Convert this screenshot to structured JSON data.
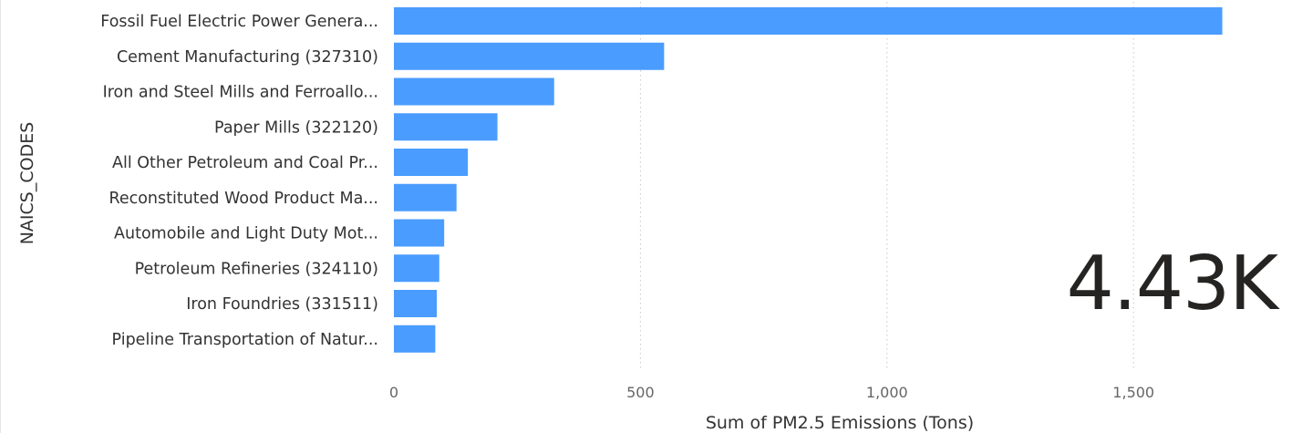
{
  "chart_data": {
    "type": "bar",
    "orientation": "horizontal",
    "categories": [
      "Fossil Fuel Electric Power Genera...",
      "Cement Manufacturing (327310)",
      "Iron and Steel Mills and Ferroallo...",
      "Paper Mills (322120)",
      "All Other Petroleum and Coal Pr...",
      "Reconstituted Wood Product Ma...",
      "Automobile and Light Duty Mot...",
      "Petroleum Refineries (324110)",
      "Iron Foundries (331511)",
      "Pipeline Transportation of Natur..."
    ],
    "values": [
      1680,
      548,
      325,
      210,
      150,
      127,
      102,
      92,
      87,
      84
    ],
    "xlabel": "Sum of PM2.5 Emissions (Tons)",
    "ylabel": "NAICS_CODES",
    "xlim": [
      0,
      1740
    ],
    "xticks": [
      0,
      500,
      1000,
      1500
    ],
    "xtick_labels": [
      "0",
      "500",
      "1,000",
      "1,500"
    ],
    "grid": "vertical dotted",
    "bar_color": "#4a9cff"
  },
  "kpi": {
    "value": "4.43K"
  }
}
